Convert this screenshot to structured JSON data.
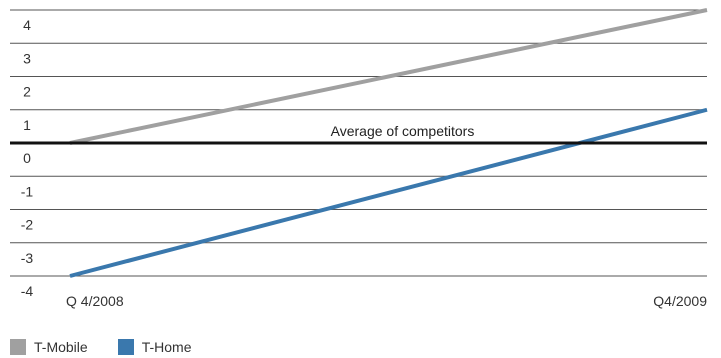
{
  "chart_data": {
    "type": "line",
    "title": "",
    "xlabel": "",
    "ylabel": "",
    "x": [
      "Q 4/2008",
      "Q4/2009"
    ],
    "ylim": [
      -4,
      4
    ],
    "yticks": [
      4,
      3,
      2,
      1,
      0,
      -1,
      -2,
      -3,
      -4
    ],
    "ytick_labels": [
      "4",
      "3",
      "2",
      "1",
      "0",
      "-1",
      "-2",
      "-3",
      "-4"
    ],
    "grid": true,
    "legend_position": "bottom-left",
    "baseline": {
      "value": 0,
      "label": "Average of competitors",
      "color": "#111111"
    },
    "series": [
      {
        "name": "T-Mobile",
        "color": "#a0a0a0",
        "values": [
          0,
          4
        ]
      },
      {
        "name": "T-Home",
        "color": "#3a78ad",
        "values": [
          -4,
          1
        ]
      }
    ]
  }
}
